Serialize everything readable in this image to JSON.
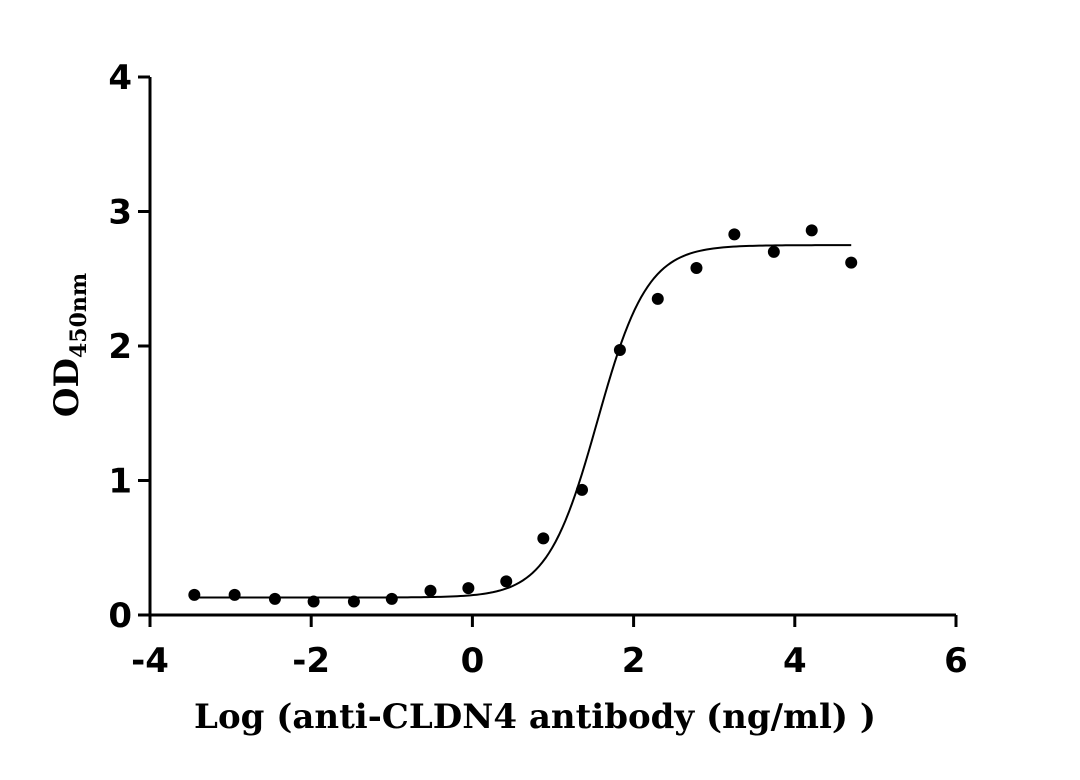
{
  "chart_data": {
    "type": "scatter",
    "title": "",
    "xlabel": "Log (anti-CLDN4 antibody (ng/ml) )",
    "ylabel": {
      "main": "OD",
      "subscript": "450nm"
    },
    "xlim": [
      -4,
      6
    ],
    "ylim": [
      0,
      4
    ],
    "x_ticks": [
      -4,
      -2,
      0,
      2,
      4,
      6
    ],
    "y_ticks": [
      0,
      1,
      2,
      3,
      4
    ],
    "grid": false,
    "legend": "none",
    "series": [
      {
        "marker": "circle",
        "color": "#000000",
        "x": [
          -3.45,
          -2.95,
          -2.45,
          -1.97,
          -1.47,
          -1.0,
          -0.52,
          -0.05,
          0.42,
          0.88,
          1.36,
          1.83,
          2.3,
          2.78,
          3.25,
          3.74,
          4.21,
          4.7
        ],
        "y": [
          0.15,
          0.15,
          0.12,
          0.1,
          0.1,
          0.12,
          0.18,
          0.2,
          0.25,
          0.57,
          0.93,
          1.97,
          2.35,
          2.58,
          2.83,
          2.7,
          2.86,
          2.62
        ]
      }
    ],
    "fit_curve": {
      "model": "4PL",
      "bottom": 0.13,
      "top": 2.75,
      "log_ec50": 1.55,
      "hill_slope": 1.4,
      "x_range": [
        -3.45,
        4.7
      ]
    }
  }
}
